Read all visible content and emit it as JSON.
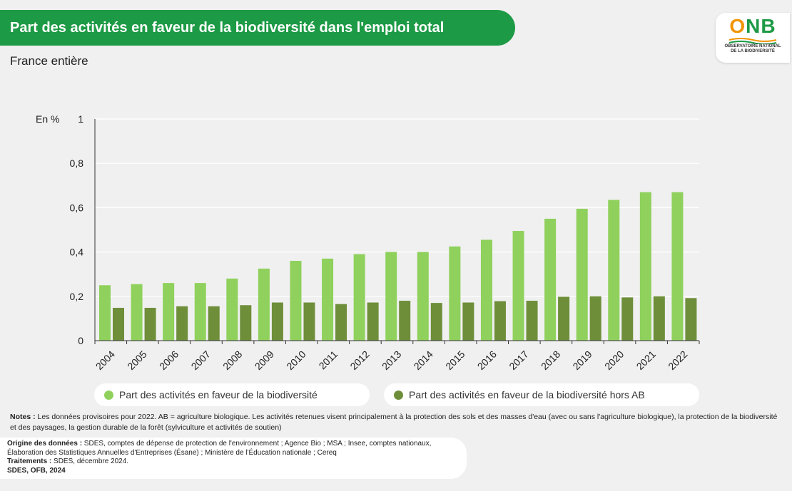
{
  "header": {
    "title": "Part des activités en faveur de la biodiversité dans l'emploi total",
    "subtitle": "France entière"
  },
  "logo": {
    "text_o": "O",
    "text_n": "N",
    "text_b": "B",
    "line1": "OBSERVATOIRE NATIONAL",
    "line2": "DE LA BIODIVERSITÉ"
  },
  "colors": {
    "accent": "#1d9a45",
    "series1": "#8fd15c",
    "series2": "#6e8e3a",
    "grid": "#ffffff",
    "axis": "#333333"
  },
  "chart_data": {
    "type": "bar",
    "unit_label": "En %",
    "ylim": [
      0,
      1
    ],
    "yticks": [
      0,
      0.2,
      0.4,
      0.6,
      0.8,
      1
    ],
    "ytick_labels": [
      "0",
      "0,2",
      "0,4",
      "0,6",
      "0,8",
      "1"
    ],
    "grid": true,
    "legend_position": "bottom",
    "categories": [
      "2004",
      "2005",
      "2006",
      "2007",
      "2008",
      "2009",
      "2010",
      "2011",
      "2012",
      "2013",
      "2014",
      "2015",
      "2016",
      "2017",
      "2018",
      "2019",
      "2020",
      "2021",
      "2022"
    ],
    "series": [
      {
        "name": "Part des activités en faveur de la biodiversité",
        "values": [
          0.25,
          0.255,
          0.26,
          0.26,
          0.28,
          0.325,
          0.36,
          0.37,
          0.39,
          0.4,
          0.4,
          0.425,
          0.455,
          0.495,
          0.55,
          0.595,
          0.635,
          0.67,
          0.67
        ]
      },
      {
        "name": "Part des activités en faveur de la biodiversité hors AB",
        "values": [
          0.148,
          0.148,
          0.155,
          0.155,
          0.16,
          0.172,
          0.172,
          0.165,
          0.172,
          0.18,
          0.17,
          0.172,
          0.178,
          0.18,
          0.198,
          0.2,
          0.195,
          0.2,
          0.192
        ]
      }
    ]
  },
  "footer": {
    "notes_label": "Notes :",
    "notes_text": " Les données provisoires pour 2022. AB = agriculture biologique. Les activités retenues visent principalement à la protection des sols et des masses d'eau (avec ou sans l'agriculture biologique), la protection de la biodiversité et des paysages, la gestion durable de la forêt (sylviculture et activités de soutien)",
    "origin_label": "Origine des données :",
    "origin_text": " SDES, comptes de dépense de protection de l'environnement ; Agence Bio ; MSA ; Insee, comptes nationaux, Élaboration des Statistiques Annuelles d'Entreprises (Ésane) ; Ministère de l'Éducation nationale ; Cereq",
    "treatment_label": "Traitements :",
    "treatment_text": " SDES, décembre 2024.",
    "credit": "SDES, OFB, 2024"
  }
}
